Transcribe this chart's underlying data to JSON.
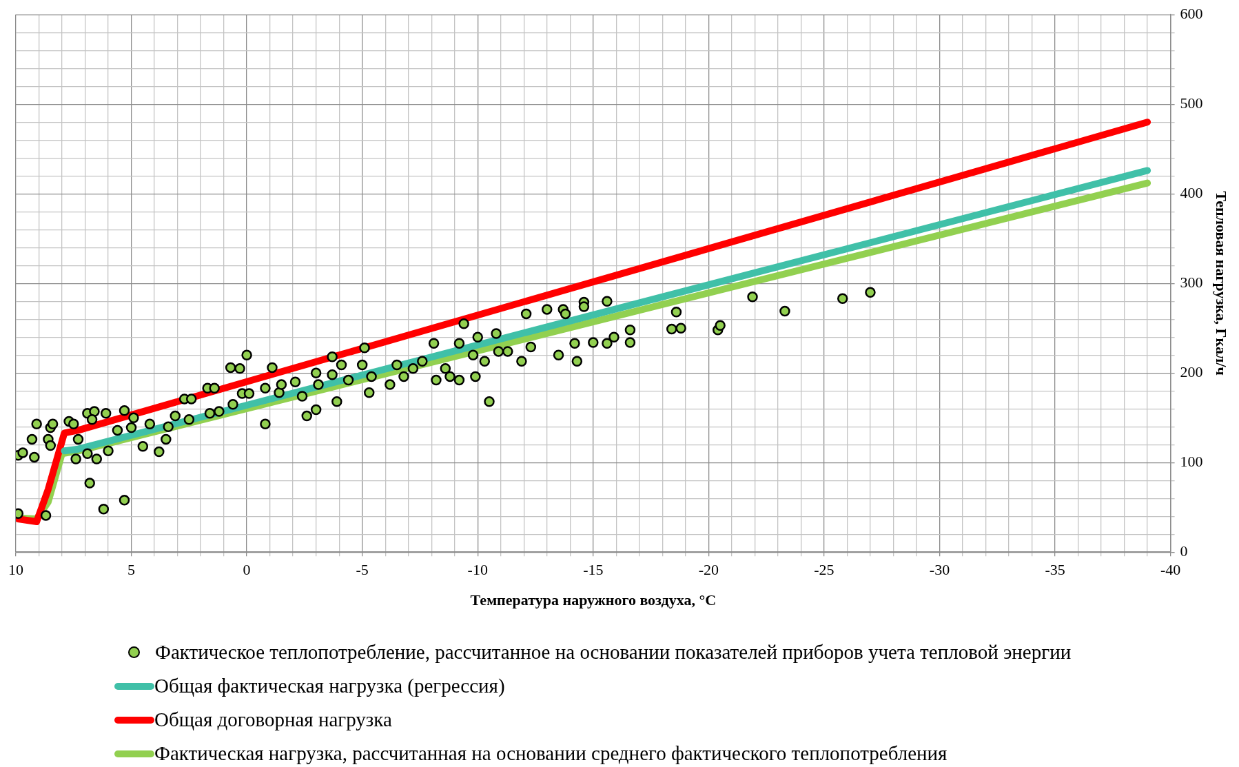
{
  "chart_data": {
    "type": "scatter",
    "xlabel": "Температура наружного воздуха, °С",
    "ylabel": "Тепловая нагрузка, Гкал/ч",
    "xlim": [
      10,
      -40
    ],
    "ylim": [
      0,
      600
    ],
    "xticks": [
      10,
      {
        "value": 9,
        "label": null
      },
      {
        "value": 8,
        "label": null
      },
      {
        "value": 7,
        "label": null
      },
      {
        "value": 6,
        "label": null
      },
      5,
      {
        "value": 4,
        "label": null
      },
      {
        "value": 3,
        "label": null
      },
      {
        "value": 2,
        "label": null
      },
      {
        "value": 1,
        "label": null
      },
      0,
      {
        "value": -1,
        "label": null
      },
      {
        "value": -2,
        "label": null
      },
      {
        "value": -3,
        "label": null
      },
      {
        "value": -4,
        "label": null
      },
      -5,
      {
        "value": -6,
        "label": null
      },
      {
        "value": -7,
        "label": null
      },
      {
        "value": -8,
        "label": null
      },
      {
        "value": -9,
        "label": null
      },
      -10,
      {
        "value": -11,
        "label": null
      },
      {
        "value": -12,
        "label": null
      },
      {
        "value": -13,
        "label": null
      },
      {
        "value": -14,
        "label": null
      },
      -15,
      {
        "value": -16,
        "label": null
      },
      {
        "value": -17,
        "label": null
      },
      {
        "value": -18,
        "label": null
      },
      {
        "value": -19,
        "label": null
      },
      -20,
      {
        "value": -21,
        "label": null
      },
      {
        "value": -22,
        "label": null
      },
      {
        "value": -23,
        "label": null
      },
      {
        "value": -24,
        "label": null
      },
      -25,
      {
        "value": -26,
        "label": null
      },
      {
        "value": -27,
        "label": null
      },
      {
        "value": -28,
        "label": null
      },
      {
        "value": -29,
        "label": null
      },
      -30,
      {
        "value": -31,
        "label": null
      },
      {
        "value": -32,
        "label": null
      },
      {
        "value": -33,
        "label": null
      },
      {
        "value": -34,
        "label": null
      },
      -35,
      {
        "value": -36,
        "label": null
      },
      {
        "value": -37,
        "label": null
      },
      {
        "value": -38,
        "label": null
      },
      {
        "value": -39,
        "label": null
      },
      -40
    ],
    "yticks": [
      0,
      {
        "value": 20,
        "label": null
      },
      {
        "value": 40,
        "label": null
      },
      {
        "value": 60,
        "label": null
      },
      {
        "value": 80,
        "label": null
      },
      100,
      {
        "value": 120,
        "label": null
      },
      {
        "value": 140,
        "label": null
      },
      {
        "value": 160,
        "label": null
      },
      {
        "value": 180,
        "label": null
      },
      200,
      {
        "value": 220,
        "label": null
      },
      {
        "value": 240,
        "label": null
      },
      {
        "value": 260,
        "label": null
      },
      {
        "value": 280,
        "label": null
      },
      300,
      {
        "value": 320,
        "label": null
      },
      {
        "value": 340,
        "label": null
      },
      {
        "value": 360,
        "label": null
      },
      {
        "value": 380,
        "label": null
      },
      400,
      {
        "value": 420,
        "label": null
      },
      {
        "value": 440,
        "label": null
      },
      {
        "value": 460,
        "label": null
      },
      {
        "value": 480,
        "label": null
      },
      500,
      {
        "value": 520,
        "label": null
      },
      {
        "value": 540,
        "label": null
      },
      {
        "value": 560,
        "label": null
      },
      {
        "value": 580,
        "label": null
      },
      600
    ],
    "grid": true,
    "legend": "bottom",
    "marker": "circle",
    "series": [
      {
        "name": "Фактическое теплопотребление, рассчитанное на основании показателей приборов учета тепловой энергии",
        "color": "#92d050",
        "type": "scatter",
        "x": [
          9.9,
          9.7,
          9.3,
          9.2,
          9.1,
          9.9,
          8.7,
          8.6,
          8.5,
          8.4,
          8.5,
          7.7,
          7.5,
          7.4,
          7.3,
          6.9,
          6.6,
          6.7,
          6.8,
          6.5,
          6.2,
          6.1,
          6.0,
          5.3,
          5.3,
          5.0,
          4.5,
          3.8,
          3.5,
          3.1,
          2.7,
          2.4,
          1.7,
          1.4,
          0.7,
          0.3,
          0.0,
          0.2,
          -0.8,
          -1.1,
          -0.8,
          -1.4,
          -2.6,
          -3.0,
          -3.0,
          -3.7,
          -4.1,
          -3.9,
          -5.0,
          -5.3,
          -5.1,
          -6.5,
          -7.2,
          -8.1,
          -8.2,
          -8.8,
          -9.2,
          -9.2,
          -9.4,
          -9.8,
          -9.9,
          -10.0,
          -10.5,
          -10.8,
          -10.9,
          -11.9,
          -12.1,
          -12.3,
          -13.0,
          -13.5,
          -13.7,
          -13.8,
          -14.2,
          -14.3,
          -14.6,
          -14.6,
          -15.0,
          -15.6,
          -15.6,
          -15.9,
          -16.6,
          -16.6,
          -18.6,
          -18.4,
          -18.8,
          -20.4,
          -20.5,
          -21.9,
          -23.3,
          -25.8,
          -27.0,
          6.9,
          5.6,
          4.9,
          4.2,
          3.4,
          2.5,
          1.6,
          1.2,
          0.6,
          -0.1,
          -1.5,
          -2.1,
          -2.4,
          -3.1,
          -3.7,
          -4.4,
          -5.4,
          -6.2,
          -6.8,
          -7.6,
          -8.6,
          -10.3,
          -11.3
        ],
        "values": [
          108,
          111,
          126,
          106,
          143,
          43,
          41,
          126,
          139,
          143,
          119,
          146,
          143,
          104,
          126,
          155,
          157,
          148,
          77,
          104,
          48,
          155,
          113,
          158,
          58,
          139,
          118,
          112,
          126,
          152,
          171,
          171,
          183,
          183,
          206,
          205,
          220,
          177,
          143,
          206,
          183,
          178,
          152,
          200,
          159,
          218,
          209,
          168,
          209,
          178,
          228,
          209,
          205,
          233,
          192,
          196,
          233,
          192,
          255,
          220,
          196,
          240,
          168,
          244,
          224,
          213,
          266,
          229,
          271,
          220,
          271,
          266,
          233,
          213,
          279,
          274,
          234,
          280,
          233,
          240,
          248,
          234,
          268,
          249,
          250,
          248,
          253,
          285,
          269,
          283,
          290,
          110,
          136,
          150,
          143,
          140,
          148,
          155,
          157,
          165,
          177,
          187,
          190,
          174,
          187,
          198,
          192,
          196,
          187,
          196,
          213,
          205,
          213,
          224
        ]
      },
      {
        "name": "Общая фактическая нагрузка (регрессия)",
        "color": "#40c0a8",
        "type": "line",
        "marker": "none",
        "x": [
          7.9,
          7.3,
          -39
        ],
        "values": [
          113,
          115,
          426
        ]
      },
      {
        "name": "Общая договорная нагрузка",
        "color": "#ff0000",
        "type": "line",
        "marker": "none",
        "x": [
          9.9,
          9.1,
          8.6,
          7.9,
          7.3,
          -39
        ],
        "values": [
          37,
          34,
          70,
          133,
          136,
          480
        ]
      },
      {
        "name": "Фактическая нагрузка, рассчитанная на основании среднего фактического теплопотребления",
        "color": "#92d050",
        "type": "line",
        "marker": "none",
        "x": [
          9.9,
          9.1,
          8.6,
          8.0,
          7.3,
          -39
        ],
        "values": [
          38,
          37,
          56,
          110,
          113,
          412
        ]
      }
    ]
  }
}
